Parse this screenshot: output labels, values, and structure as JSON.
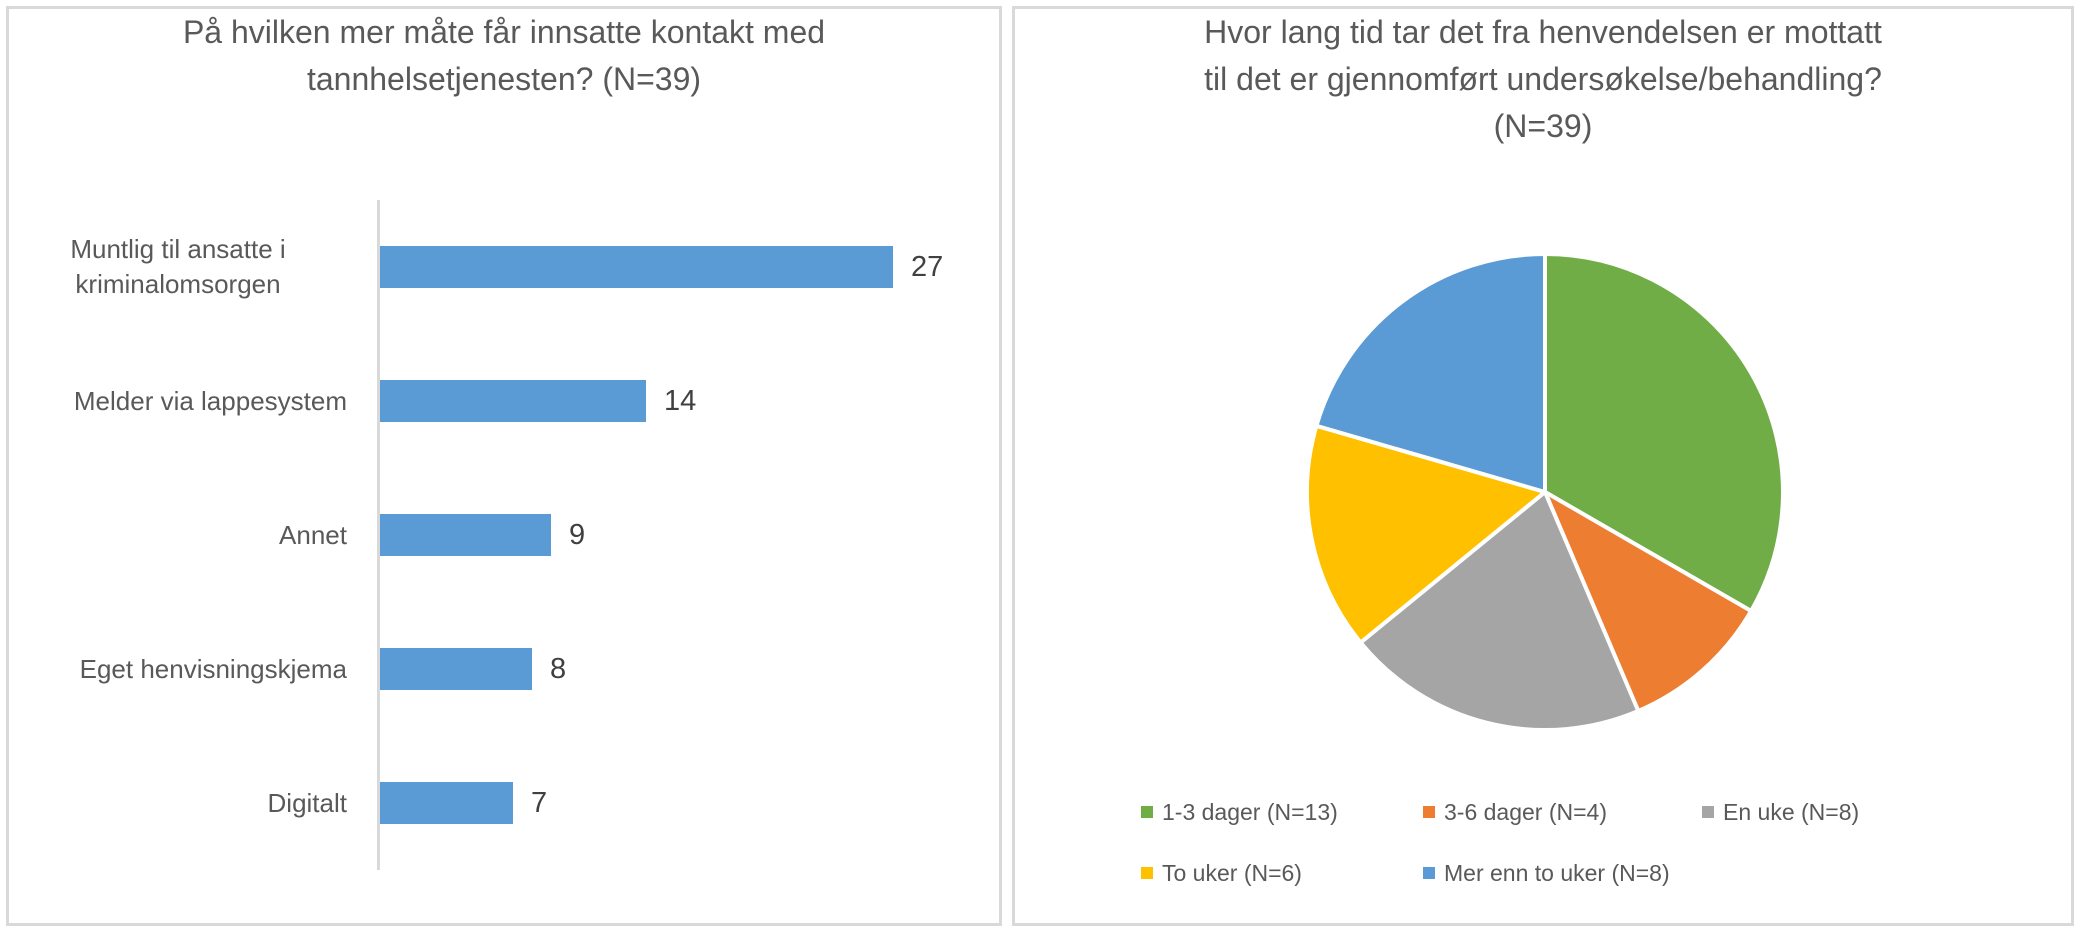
{
  "page": {
    "background": "#FFFFFF",
    "panel_border_color": "#D9D9D9",
    "title_color": "#595959",
    "category_label_color": "#595959",
    "value_label_color": "#404040",
    "axis_line_color": "#D9D9D9"
  },
  "chart_data": [
    {
      "type": "bar",
      "orientation": "horizontal",
      "title": "På hvilken mer måte får innsatte kontakt med tannhelsetjenesten? (N=39)",
      "title_lines": [
        "På hvilken mer måte får innsatte kontakt med",
        "tannhelsetjenesten? (N=39)"
      ],
      "categories": [
        "Muntlig til ansatte i kriminalomsorgen",
        "Melder via lappesystem",
        "Annet",
        "Eget henvisningskjema",
        "Digitalt"
      ],
      "values": [
        27,
        14,
        9,
        8,
        7
      ],
      "bar_color": "#5B9BD5",
      "axis_line_color": "#D9D9D9",
      "grid": false,
      "data_labels_shown": true,
      "xlim": [
        0,
        27
      ],
      "legend": "none"
    },
    {
      "type": "pie",
      "title": "Hvor lang tid tar det fra henvendelsen er mottatt til det er gjennomført undersøkelse/behandling? (N=39)",
      "title_lines": [
        "Hvor lang tid tar det fra henvendelsen er mottatt",
        "til det er gjennomført undersøkelse/behandling?",
        "(N=39)"
      ],
      "labels": [
        "1-3 dager (N=13)",
        "3-6 dager (N=4)",
        "En uke (N=8)",
        "To uker (N=6)",
        "Mer enn to uker (N=8)"
      ],
      "values": [
        13,
        4,
        8,
        6,
        8
      ],
      "colors": [
        "#70AD47",
        "#ED7D31",
        "#A5A5A5",
        "#FFC000",
        "#5B9BD5"
      ],
      "slice_separator_color": "#FFFFFF",
      "start_position": "12-oclock-clockwise",
      "legend_position": "bottom"
    }
  ]
}
